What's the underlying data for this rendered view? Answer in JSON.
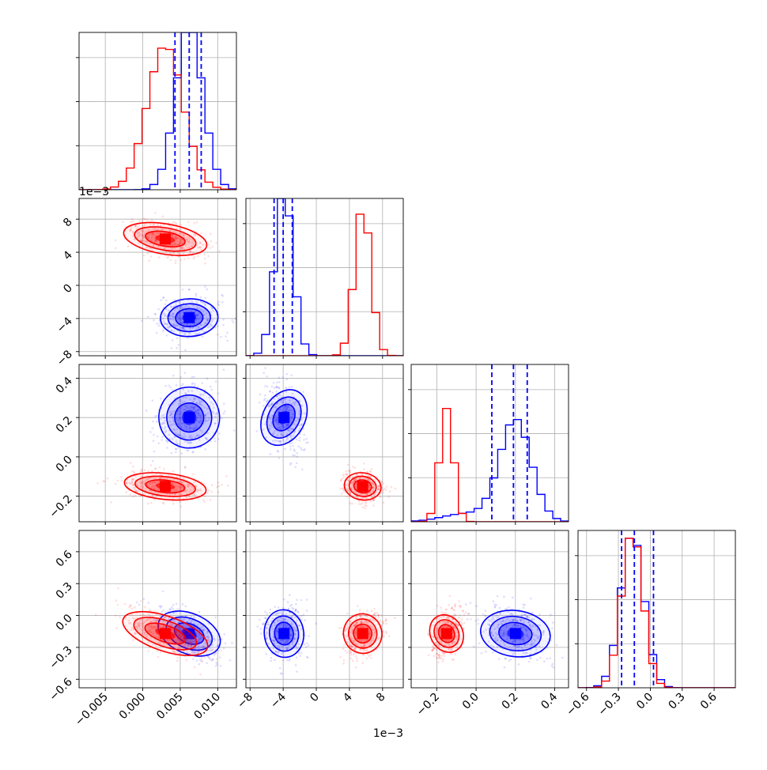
{
  "colors": {
    "blue": "#0000ff",
    "red": "#ff0000",
    "grid": "#b0b0b0",
    "axis": "#000000"
  },
  "offset_labels": {
    "x_param2": "1e−3",
    "y_param2": "1e−3"
  },
  "chart_data": {
    "type": "corner",
    "grid": true,
    "params": [
      {
        "range": [
          -0.0085,
          0.0125
        ],
        "ticks": [
          -0.005,
          0.0,
          0.005,
          0.01
        ],
        "tick_labels": [
          "−0.005",
          "0.000",
          "0.005",
          "0.010"
        ],
        "offset": ""
      },
      {
        "range": [
          -8.5,
          10.5
        ],
        "ticks": [
          -8,
          -4,
          0,
          4,
          8
        ],
        "tick_labels": [
          "−8",
          "−4",
          "0",
          "4",
          "8"
        ],
        "offset": "1e−3"
      },
      {
        "range": [
          -0.33,
          0.47
        ],
        "ticks": [
          -0.2,
          0.0,
          0.2,
          0.4
        ],
        "tick_labels": [
          "−0.2",
          "0.0",
          "0.2",
          "0.4"
        ],
        "offset": ""
      },
      {
        "range": [
          -0.68,
          0.8
        ],
        "ticks": [
          -0.6,
          -0.3,
          0.0,
          0.3,
          0.6
        ],
        "tick_labels": [
          "−0.6",
          "−0.3",
          "0.0",
          "0.3",
          "0.6"
        ],
        "offset": ""
      }
    ],
    "series": [
      {
        "color": "#0000ff",
        "means": [
          0.0062,
          -3.9,
          0.2,
          -0.17
        ],
        "sds": [
          0.0018,
          1.1,
          0.08,
          0.11
        ],
        "quantile_lines": [
          [
            0.0043,
            0.0062,
            0.0078
          ],
          [
            -5.1,
            -4.0,
            -2.9
          ],
          [
            0.08,
            0.19,
            0.26
          ],
          [
            -0.27,
            -0.15,
            0.03
          ]
        ],
        "hist_peaks": [
          1.0,
          1.0,
          0.65,
          0.95
        ]
      },
      {
        "color": "#ff0000",
        "means": [
          0.003,
          5.6,
          -0.15,
          -0.17
        ],
        "sds": [
          0.0024,
          1.0,
          0.035,
          0.1
        ],
        "quantile_lines": [],
        "hist_peaks": [
          0.9,
          0.9,
          0.72,
          0.95
        ]
      }
    ]
  }
}
